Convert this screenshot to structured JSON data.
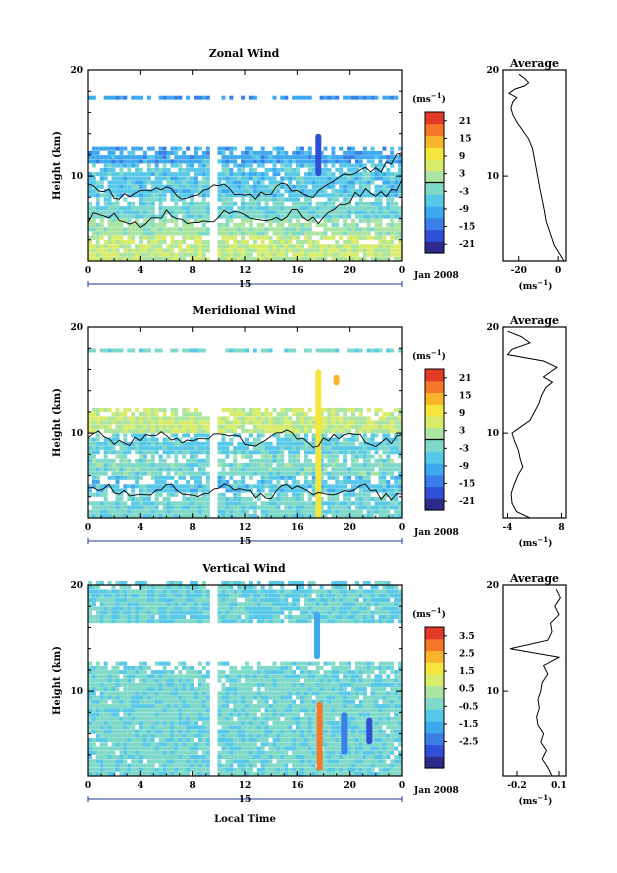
{
  "colors": {
    "colormap": [
      "#2e2a8c",
      "#2f4fd8",
      "#3a7fe8",
      "#3fa9f0",
      "#57c8e8",
      "#7fd9c8",
      "#a9e5a0",
      "#d8ec6a",
      "#f6e53a",
      "#f8b52c",
      "#f4772a",
      "#e23a26"
    ]
  },
  "xaxis": {
    "label": "Local Time",
    "date_label": "15",
    "month_label": "Jan 2008",
    "ticks": [
      "0",
      "4",
      "8",
      "12",
      "16",
      "20",
      "0"
    ]
  },
  "yaxis": {
    "label": "Height (km)",
    "ticks": [
      "10",
      "20"
    ]
  },
  "colorbar_unit": "(ms",
  "unit_sup": "−1",
  "profile_title": "Average",
  "profile_unit": "(ms",
  "chart_data": [
    {
      "type": "heatmap",
      "title": "Zonal Wind",
      "xlabel": "",
      "ylabel": "Height (km)",
      "xlim": [
        0,
        24
      ],
      "ylim": [
        2,
        20
      ],
      "colorbar": {
        "ticks": [
          "21",
          "15",
          "9",
          "3",
          "-3",
          "-9",
          "-15",
          "-21"
        ],
        "range": [
          -24,
          24
        ]
      },
      "zero_contour": true,
      "gap_hour": 9.5,
      "layers": [
        {
          "from": 2,
          "to": 4,
          "value": 4
        },
        {
          "from": 4,
          "to": 6,
          "value": 1
        },
        {
          "from": 6,
          "to": 8,
          "value": -3
        },
        {
          "from": 8,
          "to": 11,
          "value": -6
        },
        {
          "from": 11,
          "to": 12.7,
          "value": -10
        },
        {
          "from": 17,
          "to": 17.6,
          "value": -12
        }
      ],
      "features": [
        {
          "hour": 17.6,
          "from": 10,
          "to": 14,
          "value": -18
        }
      ],
      "profile": {
        "xticks": [
          "-20",
          "0"
        ],
        "xlim": [
          -28,
          4
        ],
        "points": [
          [
            3,
            2
          ],
          [
            1,
            2.6
          ],
          [
            -2,
            3.5
          ],
          [
            -4,
            4.6
          ],
          [
            -6,
            5.7
          ],
          [
            -7,
            6.8
          ],
          [
            -8,
            7.7
          ],
          [
            -9,
            8.6
          ],
          [
            -10,
            9.6
          ],
          [
            -11,
            10.6
          ],
          [
            -12,
            11.6
          ],
          [
            -13,
            12.6
          ],
          [
            -15,
            13.5
          ],
          [
            -18,
            14.3
          ],
          [
            -21,
            15.1
          ],
          [
            -23,
            15.8
          ],
          [
            -24,
            16.4
          ],
          [
            -23,
            17
          ],
          [
            -21,
            17.4
          ],
          [
            -25,
            17.8
          ],
          [
            -22,
            18.2
          ],
          [
            -17,
            18.5
          ],
          [
            -15,
            18.8
          ],
          [
            -17,
            19.2
          ],
          [
            -20,
            19.6
          ]
        ]
      }
    },
    {
      "type": "heatmap",
      "title": "Meridional Wind",
      "xlabel": "",
      "ylabel": "Height (km)",
      "xlim": [
        0,
        24
      ],
      "ylim": [
        2,
        20
      ],
      "colorbar": {
        "ticks": [
          "21",
          "15",
          "9",
          "3",
          "-3",
          "-9",
          "-15",
          "-21"
        ],
        "range": [
          -24,
          24
        ]
      },
      "zero_contour": true,
      "gap_hour": 9.5,
      "layers": [
        {
          "from": 2,
          "to": 4,
          "value": -3
        },
        {
          "from": 4,
          "to": 6,
          "value": -6
        },
        {
          "from": 6,
          "to": 8,
          "value": -2
        },
        {
          "from": 8,
          "to": 10,
          "value": -5
        },
        {
          "from": 10,
          "to": 12.3,
          "value": 4
        },
        {
          "from": 17.3,
          "to": 17.8,
          "value": -3
        }
      ],
      "features": [
        {
          "hour": 17.6,
          "from": 2,
          "to": 16,
          "value": 8
        },
        {
          "hour": 19,
          "from": 14.5,
          "to": 15.5,
          "value": 12
        }
      ],
      "profile": {
        "xticks": [
          "-4",
          "8"
        ],
        "xlim": [
          -5,
          9
        ],
        "points": [
          [
            1,
            2
          ],
          [
            -2,
            2.6
          ],
          [
            -3,
            3.4
          ],
          [
            -3.2,
            4.3
          ],
          [
            -2.5,
            5.2
          ],
          [
            -1.6,
            6.1
          ],
          [
            -0.6,
            6.8
          ],
          [
            -1.2,
            7.6
          ],
          [
            -1.6,
            8.4
          ],
          [
            -2.4,
            9.2
          ],
          [
            -3,
            10
          ],
          [
            -1,
            10.6
          ],
          [
            1,
            11.2
          ],
          [
            2,
            12
          ],
          [
            3,
            12.8
          ],
          [
            3.5,
            13.5
          ],
          [
            4.5,
            14.3
          ],
          [
            6,
            14.8
          ],
          [
            4,
            15.3
          ],
          [
            7,
            16.2
          ],
          [
            4,
            16.8
          ],
          [
            -4,
            17.4
          ],
          [
            -3,
            17.9
          ],
          [
            1,
            18.5
          ],
          [
            -1,
            19.1
          ],
          [
            -4,
            19.6
          ]
        ]
      }
    },
    {
      "type": "heatmap",
      "title": "Vertical Wind",
      "xlabel": "Local Time",
      "ylabel": "Height (km)",
      "xlim": [
        0,
        24
      ],
      "ylim": [
        2,
        20
      ],
      "colorbar": {
        "ticks": [
          "3.5",
          "2.5",
          "1.5",
          "0.5",
          "-0.5",
          "-1.5",
          "-2.5"
        ],
        "range": [
          -4,
          4
        ]
      },
      "zero_contour": false,
      "gap_hour": 9.5,
      "layers": [
        {
          "from": 2,
          "to": 12.5,
          "value": -0.5
        },
        {
          "from": 16.2,
          "to": 20,
          "value": -0.7
        }
      ],
      "features": [
        {
          "hour": 17.7,
          "from": 2.5,
          "to": 9,
          "value": 3.3
        },
        {
          "hour": 17.5,
          "from": 13,
          "to": 17.5,
          "value": -2
        },
        {
          "hour": 19.6,
          "from": 4,
          "to": 8,
          "value": -2.5
        },
        {
          "hour": 21.5,
          "from": 5,
          "to": 7.5,
          "value": -2.8
        }
      ],
      "profile": {
        "xticks": [
          "-0.2",
          "0.1"
        ],
        "xlim": [
          -0.3,
          0.15
        ],
        "points": [
          [
            0.05,
            2
          ],
          [
            0.02,
            2.8
          ],
          [
            -0.02,
            3.6
          ],
          [
            0.01,
            4.4
          ],
          [
            -0.03,
            5.2
          ],
          [
            -0.01,
            6
          ],
          [
            -0.05,
            6.8
          ],
          [
            -0.06,
            7.6
          ],
          [
            -0.04,
            8.4
          ],
          [
            -0.05,
            9.2
          ],
          [
            -0.03,
            10
          ],
          [
            -0.02,
            10.8
          ],
          [
            0.02,
            11.6
          ],
          [
            -0.01,
            12.4
          ],
          [
            0.1,
            13.2
          ],
          [
            -0.25,
            14
          ],
          [
            0.02,
            14.8
          ],
          [
            0.05,
            15.6
          ],
          [
            0.04,
            16.4
          ],
          [
            0.1,
            17.2
          ],
          [
            0.07,
            18
          ],
          [
            0.11,
            18.8
          ],
          [
            0.08,
            19.6
          ]
        ]
      }
    }
  ]
}
